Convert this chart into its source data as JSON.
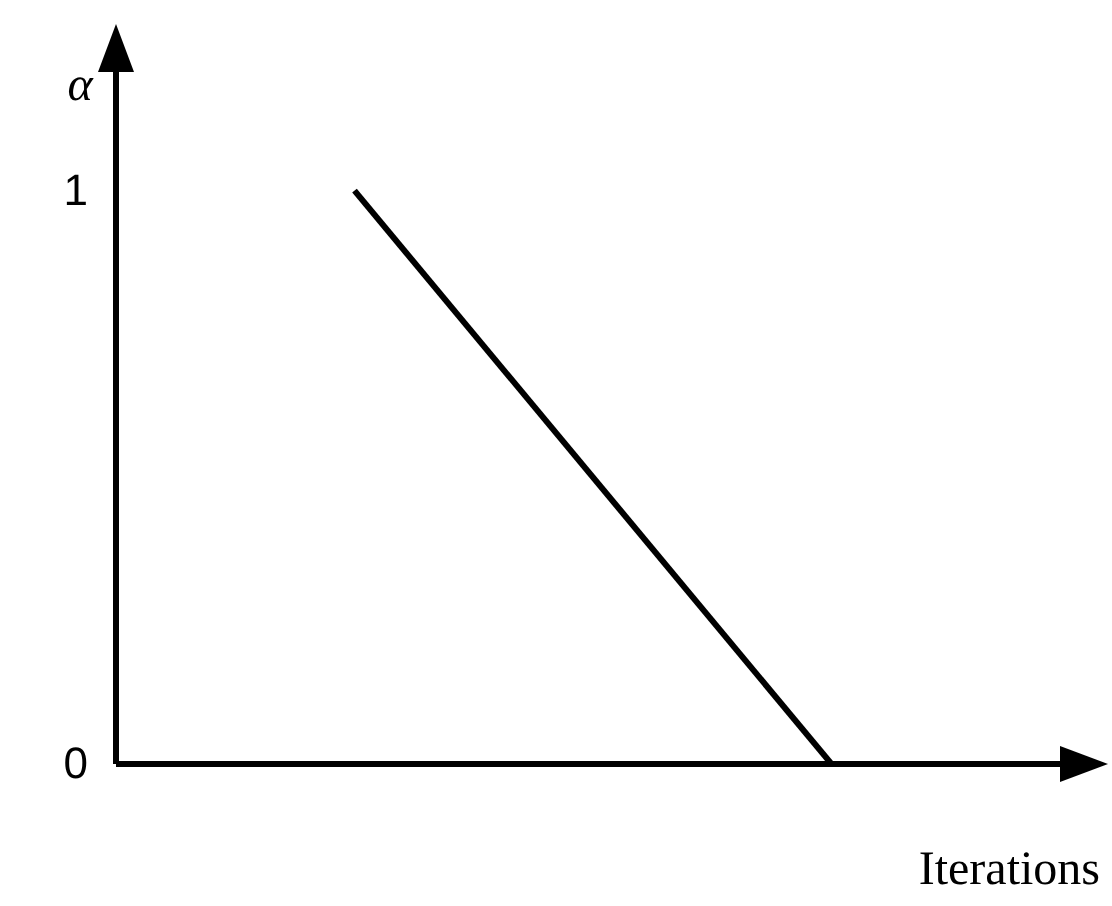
{
  "chart_data": {
    "type": "line",
    "xlabel": "Iterations",
    "ylabel": "α",
    "categories": [
      null,
      null
    ],
    "values": [
      1,
      0
    ],
    "color": "#000000",
    "ylim": [
      0,
      1.2
    ],
    "yticks": [
      0,
      1
    ],
    "grid": false,
    "legend": false,
    "marker": "none",
    "line_style": "solid"
  }
}
